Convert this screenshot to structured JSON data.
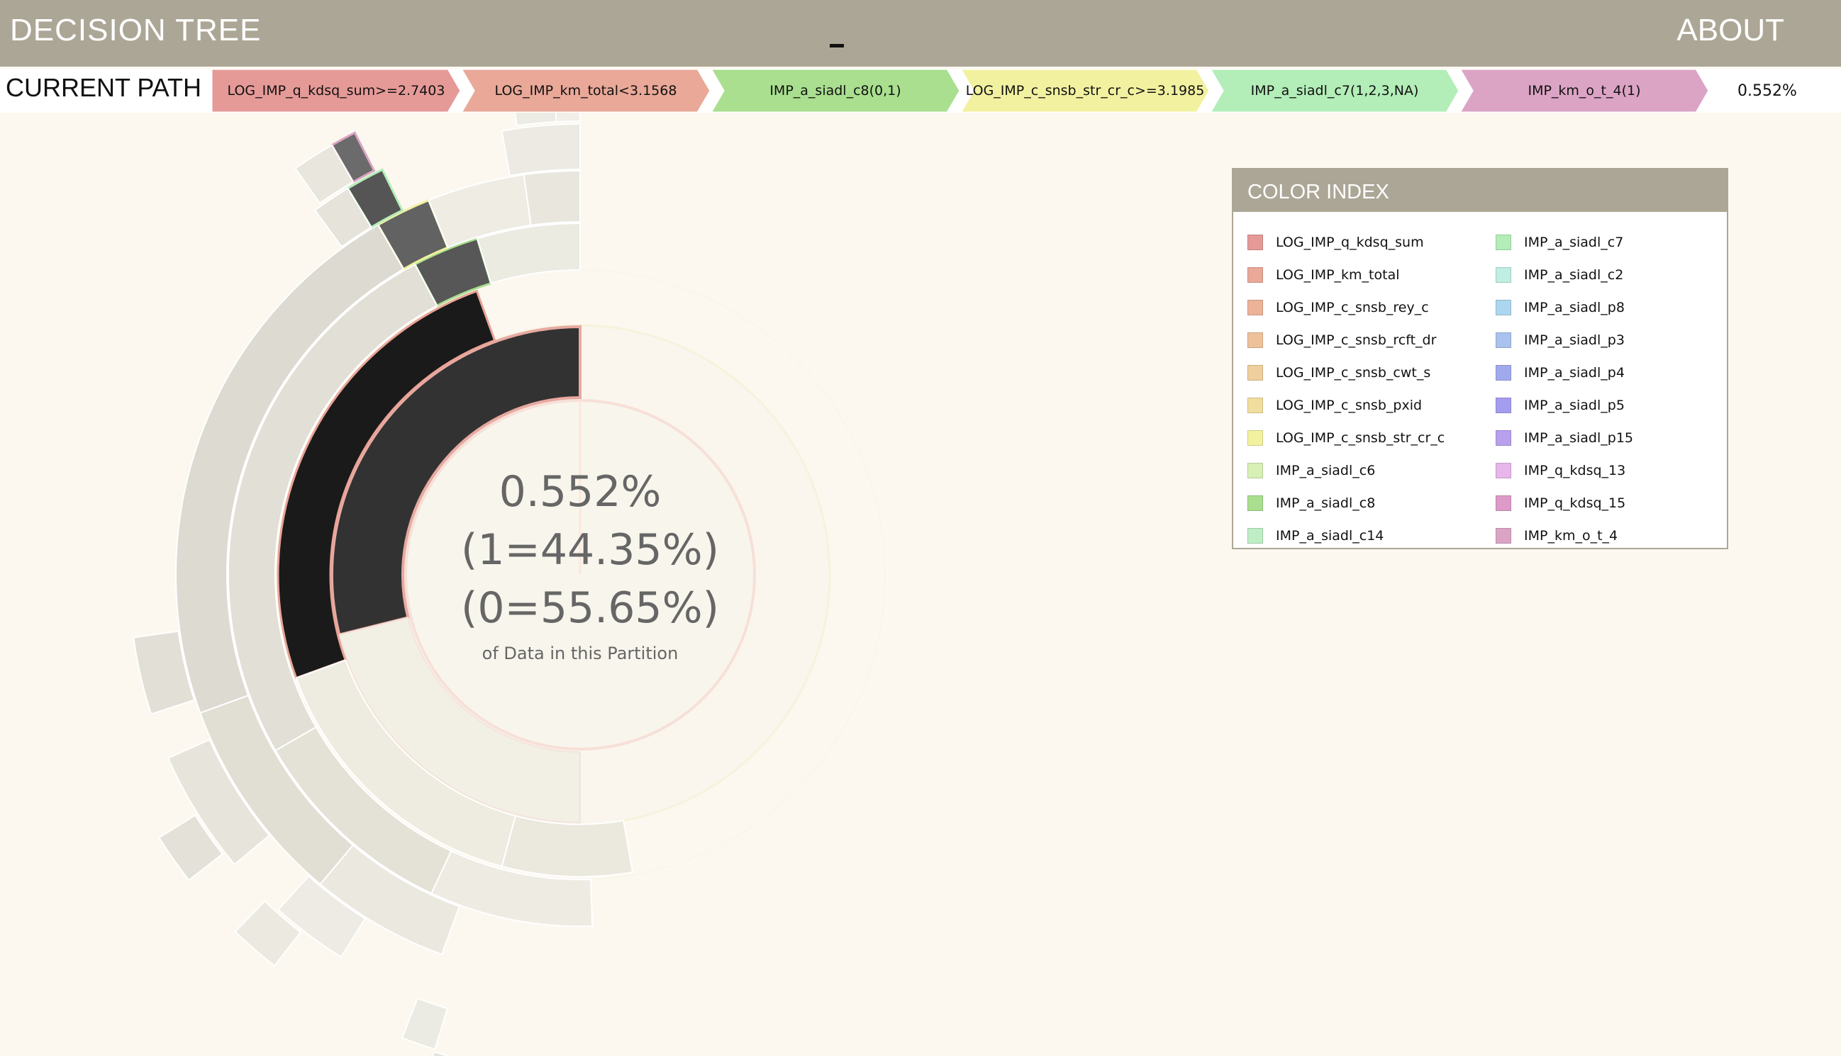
{
  "header": {
    "title": "DECISION TREE",
    "about": "ABOUT"
  },
  "breadcrumb": {
    "label": "CURRENT PATH",
    "steps": [
      {
        "text": "LOG_IMP_q_kdsq_sum>=2.7403",
        "color": "#e59a97"
      },
      {
        "text": "LOG_IMP_km_total<3.1568",
        "color": "#e9a898"
      },
      {
        "text": "IMP_a_siadl_c8(0,1)",
        "color": "#a9df8f"
      },
      {
        "text": "LOG_IMP_c_snsb_str_cr_c>=3.1985",
        "color": "#f2f1a0"
      },
      {
        "text": "IMP_a_siadl_c7(1,2,3,NA)",
        "color": "#b3edb8"
      },
      {
        "text": "IMP_km_o_t_4(1)",
        "color": "#dba4c4"
      }
    ],
    "final": "0.552%"
  },
  "center": {
    "percent": "0.552%",
    "class1": "(1=44.35%)",
    "class0": "(0=55.65%)",
    "caption": "of Data in this Partition"
  },
  "legend": {
    "title": "COLOR INDEX",
    "items": [
      {
        "label": "LOG_IMP_q_kdsq_sum",
        "color": "#e59a97"
      },
      {
        "label": "LOG_IMP_km_total",
        "color": "#e9a898"
      },
      {
        "label": "LOG_IMP_c_snsb_rey_c",
        "color": "#ecb398"
      },
      {
        "label": "LOG_IMP_c_snsb_rcft_dr",
        "color": "#eec19a"
      },
      {
        "label": "LOG_IMP_c_snsb_cwt_s",
        "color": "#efcf9d"
      },
      {
        "label": "LOG_IMP_c_snsb_pxid",
        "color": "#f1de9f"
      },
      {
        "label": "LOG_IMP_c_snsb_str_cr_c",
        "color": "#f2f1a0"
      },
      {
        "label": "IMP_a_siadl_c6",
        "color": "#d8f0b5"
      },
      {
        "label": "IMP_a_siadl_c8",
        "color": "#a9df8f"
      },
      {
        "label": "IMP_a_siadl_c14",
        "color": "#bfeec5"
      },
      {
        "label": "IMP_a_siadl_c7",
        "color": "#b3edb8"
      },
      {
        "label": "IMP_a_siadl_c2",
        "color": "#bfeee3"
      },
      {
        "label": "IMP_a_siadl_p8",
        "color": "#acd6f0"
      },
      {
        "label": "IMP_a_siadl_p3",
        "color": "#a9c2ef"
      },
      {
        "label": "IMP_a_siadl_p4",
        "color": "#a1a9ee"
      },
      {
        "label": "IMP_a_siadl_p5",
        "color": "#a49def"
      },
      {
        "label": "IMP_a_siadl_p15",
        "color": "#b8a0ee"
      },
      {
        "label": "IMP_q_kdsq_13",
        "color": "#e8b6ea"
      },
      {
        "label": "IMP_q_kdsq_15",
        "color": "#dd9ac9"
      },
      {
        "label": "IMP_km_o_t_4",
        "color": "#dba4c4"
      }
    ]
  }
}
